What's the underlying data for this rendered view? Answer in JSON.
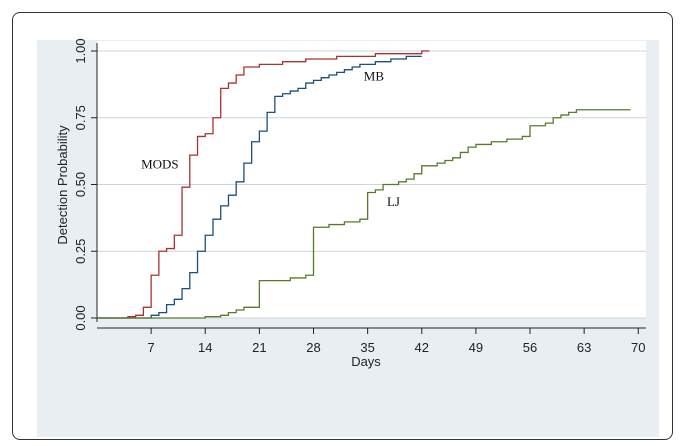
{
  "chart_data": {
    "type": "line",
    "title": "",
    "xlabel": "Days",
    "ylabel": "Detection Probability",
    "xlim": [
      0,
      71
    ],
    "ylim": [
      0,
      1
    ],
    "x_ticks": [
      7,
      14,
      21,
      28,
      35,
      42,
      49,
      56,
      63,
      70
    ],
    "y_ticks": [
      0,
      0.25,
      0.5,
      0.75,
      1
    ],
    "y_tick_labels": [
      "0.00",
      "0.25",
      "0.50",
      "0.75",
      "1.00"
    ],
    "grid": true,
    "colors": {
      "MODS": "#a83232",
      "MB": "#1f4e79",
      "LJ": "#5a7a2a",
      "grid": "#c9d6de",
      "background": "#e9eef2"
    },
    "series": [
      {
        "name": "MODS",
        "step": true,
        "points": [
          [
            0,
            0
          ],
          [
            3,
            0
          ],
          [
            4,
            0.005
          ],
          [
            5,
            0.01
          ],
          [
            6,
            0.04
          ],
          [
            7,
            0.16
          ],
          [
            8,
            0.25
          ],
          [
            9,
            0.26
          ],
          [
            10,
            0.31
          ],
          [
            11,
            0.49
          ],
          [
            12,
            0.61
          ],
          [
            13,
            0.68
          ],
          [
            14,
            0.69
          ],
          [
            15,
            0.75
          ],
          [
            16,
            0.86
          ],
          [
            17,
            0.88
          ],
          [
            18,
            0.91
          ],
          [
            19,
            0.94
          ],
          [
            21,
            0.95
          ],
          [
            24,
            0.96
          ],
          [
            27,
            0.97
          ],
          [
            31,
            0.98
          ],
          [
            36,
            0.99
          ],
          [
            42,
            1.0
          ],
          [
            43,
            1.0
          ]
        ]
      },
      {
        "name": "MB",
        "step": true,
        "points": [
          [
            0,
            0
          ],
          [
            6,
            0
          ],
          [
            7,
            0.01
          ],
          [
            8,
            0.02
          ],
          [
            9,
            0.05
          ],
          [
            10,
            0.07
          ],
          [
            11,
            0.11
          ],
          [
            12,
            0.17
          ],
          [
            13,
            0.25
          ],
          [
            14,
            0.31
          ],
          [
            15,
            0.37
          ],
          [
            16,
            0.42
          ],
          [
            17,
            0.46
          ],
          [
            18,
            0.51
          ],
          [
            19,
            0.58
          ],
          [
            20,
            0.66
          ],
          [
            21,
            0.7
          ],
          [
            22,
            0.77
          ],
          [
            23,
            0.83
          ],
          [
            24,
            0.84
          ],
          [
            25,
            0.85
          ],
          [
            26,
            0.86
          ],
          [
            27,
            0.88
          ],
          [
            28,
            0.89
          ],
          [
            29,
            0.9
          ],
          [
            30,
            0.91
          ],
          [
            31,
            0.92
          ],
          [
            32,
            0.93
          ],
          [
            33,
            0.94
          ],
          [
            34,
            0.95
          ],
          [
            36,
            0.96
          ],
          [
            38,
            0.97
          ],
          [
            40,
            0.98
          ],
          [
            42,
            0.98
          ]
        ]
      },
      {
        "name": "LJ",
        "step": true,
        "points": [
          [
            0,
            0
          ],
          [
            12,
            0
          ],
          [
            14,
            0.005
          ],
          [
            16,
            0.01
          ],
          [
            17,
            0.02
          ],
          [
            18,
            0.03
          ],
          [
            19,
            0.04
          ],
          [
            20,
            0.04
          ],
          [
            21,
            0.14
          ],
          [
            25,
            0.15
          ],
          [
            27,
            0.16
          ],
          [
            28,
            0.34
          ],
          [
            30,
            0.35
          ],
          [
            32,
            0.36
          ],
          [
            34,
            0.37
          ],
          [
            35,
            0.47
          ],
          [
            36,
            0.48
          ],
          [
            37,
            0.5
          ],
          [
            39,
            0.51
          ],
          [
            40,
            0.52
          ],
          [
            41,
            0.54
          ],
          [
            42,
            0.57
          ],
          [
            44,
            0.58
          ],
          [
            45,
            0.59
          ],
          [
            46,
            0.6
          ],
          [
            47,
            0.62
          ],
          [
            48,
            0.64
          ],
          [
            49,
            0.65
          ],
          [
            51,
            0.66
          ],
          [
            53,
            0.67
          ],
          [
            55,
            0.68
          ],
          [
            56,
            0.72
          ],
          [
            58,
            0.73
          ],
          [
            59,
            0.75
          ],
          [
            60,
            0.76
          ],
          [
            61,
            0.77
          ],
          [
            62,
            0.78
          ],
          [
            63,
            0.78
          ],
          [
            69,
            0.78
          ]
        ]
      }
    ],
    "series_labels": [
      {
        "text": "MODS",
        "x": 5.7,
        "y": 0.56
      },
      {
        "text": "MB",
        "x": 34.5,
        "y": 0.89
      },
      {
        "text": "LJ",
        "x": 37.5,
        "y": 0.42
      }
    ]
  }
}
